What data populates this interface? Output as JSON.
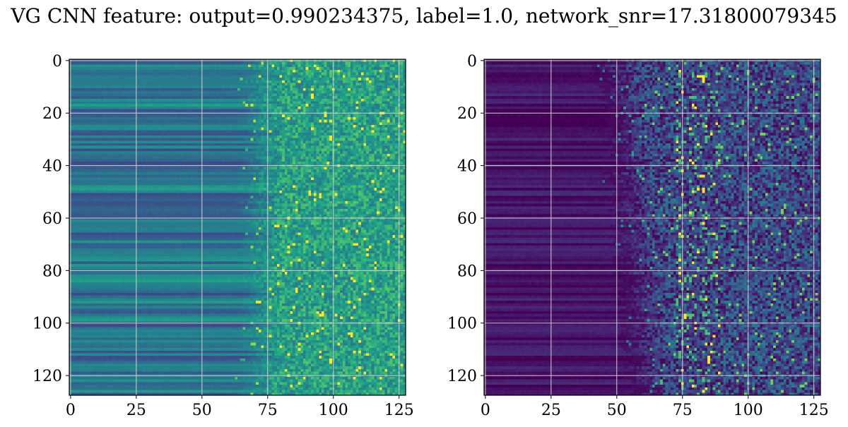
{
  "figure": {
    "title": "VG CNN feature: output=0.990234375, label=1.0, network_snr=17.31800079345"
  },
  "chart_data": [
    {
      "type": "heatmap",
      "colormap": "viridis",
      "rows": 128,
      "cols": 128,
      "xlim": [
        0,
        127
      ],
      "ylim": [
        127,
        0
      ],
      "xticks": [
        0,
        25,
        50,
        75,
        100,
        125
      ],
      "yticks": [
        0,
        20,
        40,
        60,
        80,
        100,
        120
      ],
      "grid": true,
      "description_values": "left panel: mid-teal background, row-banded on x<65, speckled bright cells beyond x≈75",
      "base_level": 0.4,
      "onset_col": 65,
      "row_band_strength": 0.18,
      "speckle_strength": 0.35
    },
    {
      "type": "heatmap",
      "colormap": "viridis",
      "rows": 128,
      "cols": 128,
      "xlim": [
        0,
        127
      ],
      "ylim": [
        127,
        0
      ],
      "xticks": [
        0,
        25,
        50,
        75,
        100,
        125
      ],
      "yticks": [
        0,
        20,
        40,
        60,
        80,
        100,
        120
      ],
      "grid": true,
      "description_values": "right panel: dark purple background, activity begins x≈45–60, brightest cells near x≈80",
      "base_level": 0.05,
      "onset_col": 50,
      "row_band_strength": 0.08,
      "speckle_strength": 0.45
    }
  ]
}
